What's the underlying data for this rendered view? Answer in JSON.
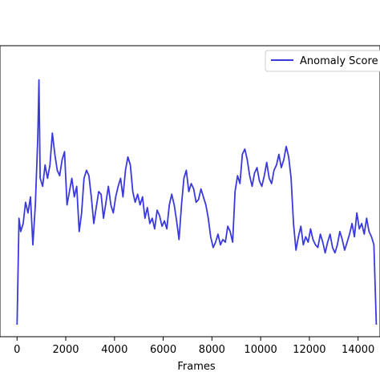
{
  "chart_data": {
    "type": "line",
    "title": "",
    "xlabel": "Frames",
    "ylabel": "",
    "xlim": [
      -700,
      14900
    ],
    "ylim": [
      0,
      1
    ],
    "xticks": [
      0,
      2000,
      4000,
      6000,
      8000,
      10000,
      12000,
      14000
    ],
    "xtick_labels": [
      "0",
      "2000",
      "4000",
      "6000",
      "8000",
      "10000",
      "12000",
      "14000"
    ],
    "grid": false,
    "legend": {
      "position": "top-right",
      "entries": [
        "Anomaly Score"
      ]
    },
    "series": [
      {
        "name": "Anomaly Score",
        "color": "#3a3adc",
        "x": [
          0,
          80,
          150,
          250,
          350,
          450,
          550,
          650,
          750,
          850,
          900,
          950,
          1050,
          1150,
          1250,
          1350,
          1450,
          1550,
          1650,
          1750,
          1850,
          1950,
          2050,
          2150,
          2250,
          2350,
          2450,
          2550,
          2650,
          2750,
          2850,
          2950,
          3050,
          3150,
          3250,
          3350,
          3450,
          3550,
          3650,
          3750,
          3850,
          3950,
          4050,
          4150,
          4250,
          4350,
          4450,
          4550,
          4650,
          4750,
          4850,
          4950,
          5050,
          5150,
          5250,
          5350,
          5450,
          5550,
          5650,
          5750,
          5850,
          5950,
          6050,
          6150,
          6250,
          6350,
          6450,
          6550,
          6650,
          6750,
          6850,
          6950,
          7050,
          7150,
          7250,
          7350,
          7450,
          7550,
          7650,
          7750,
          7850,
          7950,
          8050,
          8150,
          8250,
          8350,
          8450,
          8550,
          8650,
          8750,
          8850,
          8950,
          9050,
          9150,
          9250,
          9350,
          9450,
          9550,
          9650,
          9750,
          9850,
          9950,
          10050,
          10150,
          10250,
          10350,
          10450,
          10550,
          10650,
          10750,
          10850,
          10950,
          11050,
          11150,
          11250,
          11350,
          11450,
          11550,
          11650,
          11750,
          11850,
          11950,
          12050,
          12150,
          12250,
          12350,
          12450,
          12550,
          12650,
          12750,
          12850,
          12950,
          13050,
          13150,
          13250,
          13350,
          13450,
          13550,
          13650,
          13750,
          13850,
          13950,
          14050,
          14150,
          14250,
          14350,
          14450,
          14550,
          14650,
          14750
        ],
        "y": [
          0.0,
          0.4,
          0.35,
          0.38,
          0.46,
          0.42,
          0.48,
          0.3,
          0.45,
          0.7,
          0.92,
          0.55,
          0.52,
          0.6,
          0.55,
          0.6,
          0.72,
          0.64,
          0.58,
          0.56,
          0.62,
          0.65,
          0.45,
          0.5,
          0.55,
          0.48,
          0.52,
          0.35,
          0.42,
          0.55,
          0.58,
          0.56,
          0.48,
          0.38,
          0.44,
          0.5,
          0.49,
          0.4,
          0.46,
          0.52,
          0.45,
          0.42,
          0.48,
          0.52,
          0.55,
          0.48,
          0.58,
          0.63,
          0.6,
          0.5,
          0.46,
          0.49,
          0.45,
          0.48,
          0.4,
          0.44,
          0.38,
          0.4,
          0.36,
          0.43,
          0.41,
          0.37,
          0.39,
          0.36,
          0.45,
          0.49,
          0.45,
          0.39,
          0.32,
          0.45,
          0.55,
          0.58,
          0.5,
          0.53,
          0.51,
          0.46,
          0.47,
          0.51,
          0.48,
          0.45,
          0.4,
          0.33,
          0.29,
          0.31,
          0.34,
          0.3,
          0.32,
          0.31,
          0.37,
          0.35,
          0.31,
          0.5,
          0.56,
          0.53,
          0.64,
          0.66,
          0.62,
          0.56,
          0.52,
          0.57,
          0.59,
          0.54,
          0.52,
          0.56,
          0.61,
          0.55,
          0.53,
          0.58,
          0.6,
          0.64,
          0.59,
          0.62,
          0.67,
          0.63,
          0.55,
          0.38,
          0.28,
          0.33,
          0.37,
          0.3,
          0.33,
          0.31,
          0.36,
          0.32,
          0.3,
          0.29,
          0.34,
          0.31,
          0.27,
          0.31,
          0.34,
          0.29,
          0.27,
          0.3,
          0.35,
          0.32,
          0.28,
          0.31,
          0.34,
          0.38,
          0.33,
          0.42,
          0.36,
          0.38,
          0.34,
          0.4,
          0.35,
          0.33,
          0.3,
          0.0
        ]
      }
    ]
  }
}
